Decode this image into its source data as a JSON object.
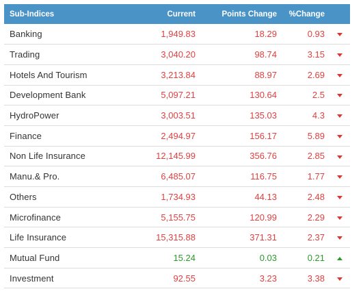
{
  "headers": {
    "name": "Sub-Indices",
    "current": "Current",
    "points_change": "Points Change",
    "pct_change": "%Change"
  },
  "colors": {
    "header_bg": "#4a93c7",
    "down": "#e04040",
    "up": "#2a9a2a"
  },
  "rows": [
    {
      "name": "Banking",
      "current": "1,949.83",
      "points": "18.29",
      "pct": "0.93",
      "trend": "down",
      "icon": "arrow-down-icon"
    },
    {
      "name": "Trading",
      "current": "3,040.20",
      "points": "98.74",
      "pct": "3.15",
      "trend": "down",
      "icon": "arrow-down-icon"
    },
    {
      "name": "Hotels And Tourism",
      "current": "3,213.84",
      "points": "88.97",
      "pct": "2.69",
      "trend": "down",
      "icon": "arrow-down-icon"
    },
    {
      "name": "Development Bank",
      "current": "5,097.21",
      "points": "130.64",
      "pct": "2.5",
      "trend": "down",
      "icon": "arrow-down-icon"
    },
    {
      "name": "HydroPower",
      "current": "3,003.51",
      "points": "135.03",
      "pct": "4.3",
      "trend": "down",
      "icon": "arrow-down-icon"
    },
    {
      "name": "Finance",
      "current": "2,494.97",
      "points": "156.17",
      "pct": "5.89",
      "trend": "down",
      "icon": "arrow-down-icon"
    },
    {
      "name": "Non Life Insurance",
      "current": "12,145.99",
      "points": "356.76",
      "pct": "2.85",
      "trend": "down",
      "icon": "arrow-down-icon"
    },
    {
      "name": "Manu.& Pro.",
      "current": "6,485.07",
      "points": "116.75",
      "pct": "1.77",
      "trend": "down",
      "icon": "arrow-down-icon"
    },
    {
      "name": "Others",
      "current": "1,734.93",
      "points": "44.13",
      "pct": "2.48",
      "trend": "down",
      "icon": "arrow-down-icon"
    },
    {
      "name": "Microfinance",
      "current": "5,155.75",
      "points": "120.99",
      "pct": "2.29",
      "trend": "down",
      "icon": "arrow-down-icon"
    },
    {
      "name": "Life Insurance",
      "current": "15,315.88",
      "points": "371.31",
      "pct": "2.37",
      "trend": "down",
      "icon": "arrow-down-icon"
    },
    {
      "name": "Mutual Fund",
      "current": "15.24",
      "points": "0.03",
      "pct": "0.21",
      "trend": "up",
      "icon": "arrow-up-icon"
    },
    {
      "name": "Investment",
      "current": "92.55",
      "points": "3.23",
      "pct": "3.38",
      "trend": "down",
      "icon": "arrow-down-icon"
    }
  ]
}
